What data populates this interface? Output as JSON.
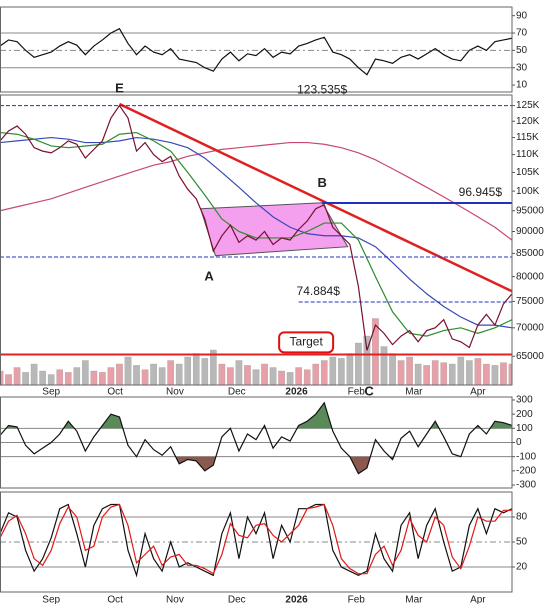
{
  "chart_data": [
    {
      "type": "line",
      "ylim": [
        2,
        100
      ],
      "yticks": [
        90,
        70,
        50,
        30,
        10
      ],
      "reference_lines": [
        {
          "value": 70
        },
        {
          "value": 50,
          "dashed": true
        },
        {
          "value": 30
        }
      ],
      "xlim": [
        0,
        240
      ],
      "series": [
        {
          "color": "#111111",
          "x": [
            0,
            4,
            8,
            12,
            16,
            20,
            24,
            28,
            32,
            36,
            40,
            44,
            48,
            52,
            56,
            60,
            64,
            68,
            72,
            76,
            80,
            84,
            88,
            92,
            96,
            100,
            104,
            108,
            112,
            116,
            120,
            124,
            128,
            132,
            136,
            140,
            144,
            148,
            152,
            156,
            160,
            164,
            168,
            172,
            176,
            180,
            184,
            188,
            192,
            196,
            200,
            204,
            208,
            212,
            216,
            220,
            224,
            228,
            232,
            236,
            240
          ],
          "values": [
            55,
            62,
            60,
            50,
            42,
            45,
            48,
            55,
            60,
            56,
            45,
            55,
            62,
            70,
            75,
            58,
            45,
            55,
            48,
            45,
            52,
            40,
            38,
            36,
            30,
            26,
            40,
            48,
            38,
            46,
            44,
            52,
            42,
            48,
            46,
            55,
            58,
            62,
            65,
            48,
            45,
            40,
            30,
            22,
            40,
            38,
            35,
            42,
            45,
            40,
            46,
            52,
            45,
            40,
            38,
            50,
            55,
            50,
            60,
            62,
            64
          ]
        }
      ]
    },
    {
      "type": "line",
      "log_scale": true,
      "ylim": [
        60300,
        128500
      ],
      "yticks": [
        {
          "value": 125000,
          "label": "125K"
        },
        {
          "value": 120000,
          "label": "120K"
        },
        {
          "value": 115000,
          "label": "115K"
        },
        {
          "value": 110000,
          "label": "110K"
        },
        {
          "value": 105000,
          "label": "105K"
        },
        {
          "value": 100000,
          "label": "100K"
        },
        95000,
        90000,
        85000,
        80000,
        75000,
        70000,
        65000
      ],
      "xlim": [
        0,
        240
      ],
      "xticks": [
        {
          "value": 24,
          "label": "Sep"
        },
        {
          "value": 54,
          "label": "Oct"
        },
        {
          "value": 82,
          "label": "Nov"
        },
        {
          "value": 111,
          "label": "Dec"
        },
        {
          "value": 139,
          "label": "2026"
        },
        {
          "value": 167,
          "label": "Feb"
        },
        {
          "value": 194,
          "label": "Mar"
        },
        {
          "value": 224,
          "label": "Apr"
        }
      ],
      "volume": {
        "vlim": [
          0,
          100
        ],
        "up_color": "#e8a0a8",
        "down_color": "#b8b8b8",
        "values": [
          20,
          15,
          25,
          18,
          30,
          20,
          15,
          22,
          18,
          25,
          35,
          20,
          18,
          25,
          30,
          40,
          28,
          22,
          30,
          25,
          35,
          30,
          40,
          45,
          38,
          50,
          30,
          25,
          35,
          28,
          22,
          30,
          25,
          20,
          18,
          25,
          22,
          30,
          35,
          40,
          38,
          45,
          60,
          70,
          95,
          55,
          45,
          35,
          40,
          30,
          28,
          35,
          32,
          30,
          40,
          35,
          38,
          30,
          28,
          32,
          30
        ]
      },
      "channel": {
        "color": "#f080e8",
        "x": [
          94,
          151,
          163,
          101
        ],
        "values": [
          95500,
          97000,
          86500,
          84500
        ]
      },
      "series": [
        {
          "color": "#c84870",
          "x": [
            0,
            8,
            16,
            24,
            32,
            40,
            48,
            56,
            64,
            72,
            80,
            88,
            96,
            104,
            112,
            120,
            128,
            136,
            144,
            152,
            160,
            168,
            176,
            184,
            192,
            200,
            208,
            216,
            224,
            232,
            240
          ],
          "values": [
            95000,
            96000,
            97000,
            98000,
            99500,
            101000,
            102500,
            104000,
            105500,
            107000,
            108000,
            109500,
            110500,
            111500,
            112000,
            112500,
            113000,
            113500,
            113500,
            113000,
            112000,
            110500,
            108500,
            106000,
            103500,
            101000,
            98500,
            96000,
            93500,
            91000,
            88000
          ]
        },
        {
          "color": "#3848b8",
          "x": [
            0,
            8,
            16,
            24,
            32,
            40,
            48,
            56,
            64,
            72,
            80,
            88,
            96,
            104,
            112,
            120,
            128,
            136,
            144,
            152,
            160,
            168,
            176,
            184,
            192,
            200,
            208,
            216,
            224,
            232,
            240
          ],
          "values": [
            113500,
            114000,
            114500,
            115000,
            114500,
            113500,
            113500,
            114000,
            115000,
            114500,
            113500,
            112000,
            109000,
            105000,
            101000,
            97000,
            93500,
            91000,
            89500,
            89000,
            89000,
            88500,
            86500,
            83000,
            79500,
            76500,
            74000,
            72000,
            70500,
            70500,
            70000
          ]
        },
        {
          "color": "#2e8b2e",
          "x": [
            0,
            8,
            16,
            24,
            32,
            40,
            48,
            56,
            64,
            72,
            80,
            88,
            96,
            104,
            112,
            120,
            128,
            136,
            144,
            152,
            160,
            168,
            176,
            184,
            192,
            200,
            208,
            216,
            224,
            232,
            240
          ],
          "values": [
            116500,
            116000,
            114500,
            112500,
            112000,
            112500,
            113000,
            116000,
            116500,
            114000,
            111000,
            105000,
            99000,
            93000,
            90000,
            88500,
            88500,
            88500,
            90000,
            92000,
            92000,
            88000,
            80000,
            73000,
            69000,
            68500,
            69500,
            70000,
            69000,
            70000,
            71500
          ]
        },
        {
          "color": "#7a1030",
          "x": [
            0,
            4,
            8,
            12,
            16,
            20,
            24,
            28,
            32,
            36,
            40,
            44,
            48,
            52,
            56,
            60,
            64,
            68,
            72,
            76,
            80,
            84,
            88,
            92,
            96,
            100,
            104,
            108,
            112,
            116,
            120,
            124,
            128,
            132,
            136,
            140,
            144,
            148,
            152,
            156,
            160,
            164,
            168,
            172,
            176,
            180,
            184,
            188,
            192,
            196,
            200,
            204,
            208,
            212,
            216,
            220,
            224,
            228,
            232,
            236,
            240
          ],
          "values": [
            114000,
            117000,
            118500,
            116000,
            112000,
            111000,
            110500,
            112000,
            114000,
            113000,
            109000,
            111500,
            114000,
            121000,
            125000,
            121000,
            111000,
            113500,
            110000,
            108000,
            109500,
            104000,
            100500,
            98000,
            93000,
            85500,
            89000,
            91500,
            87500,
            89000,
            88000,
            90000,
            87000,
            88500,
            88000,
            90500,
            92500,
            95500,
            96500,
            91000,
            89000,
            87000,
            78000,
            66000,
            70500,
            69000,
            67000,
            68500,
            69500,
            67500,
            69500,
            70000,
            71500,
            68000,
            67500,
            66500,
            70500,
            72500,
            70500,
            74500,
            76500
          ]
        }
      ],
      "trendline": {
        "color": "#e02020",
        "x": [
          56,
          240
        ],
        "values": [
          125500,
          77000
        ]
      },
      "levels": [
        {
          "value": 125000,
          "color": "#2030c0",
          "dashed": true
        },
        {
          "value": 84200,
          "color": "#2030c0",
          "dashed": true
        },
        {
          "value": 74884,
          "label": "74.884$",
          "from": 140,
          "label_at": 139,
          "color": "#2030c0",
          "dashed": true
        },
        {
          "value": 96945,
          "label": "96.945$",
          "from": 151,
          "label_at": 215,
          "color": "#2030c0",
          "solid": true
        },
        {
          "value": 65300,
          "color": "#e02020",
          "solid": true
        }
      ],
      "annotations": [
        {
          "text": "E",
          "x": 56,
          "y": 130500
        },
        {
          "text": "B",
          "x": 151,
          "y": 102000
        },
        {
          "text": "A",
          "x": 98,
          "y": 79900
        },
        {
          "text": "C",
          "x": 173,
          "y": 59200
        },
        {
          "text": "123.535$",
          "x": 151,
          "y": 130000
        },
        {
          "text": "Target",
          "x": 143.5,
          "y": 67400,
          "boxed": true
        }
      ]
    },
    {
      "type": "line",
      "ylim": [
        -321,
        321
      ],
      "yticks": [
        300,
        200,
        100,
        0,
        -100,
        -200,
        -300
      ],
      "reference_lines": [
        {
          "value": 100
        },
        {
          "value": 0
        },
        {
          "value": -100
        }
      ],
      "fill": {
        "above": 100,
        "above_color": "#5a8a5a",
        "below": -100,
        "below_color": "#8a5a50"
      },
      "xlim": [
        0,
        240
      ],
      "series": [
        {
          "color": "#111111",
          "x": [
            0,
            4,
            8,
            12,
            16,
            20,
            24,
            28,
            32,
            36,
            40,
            44,
            48,
            52,
            56,
            60,
            64,
            68,
            72,
            76,
            80,
            84,
            88,
            92,
            96,
            100,
            104,
            108,
            112,
            116,
            120,
            124,
            128,
            132,
            136,
            140,
            144,
            148,
            152,
            156,
            160,
            164,
            168,
            172,
            176,
            180,
            184,
            188,
            192,
            196,
            200,
            204,
            208,
            212,
            216,
            220,
            224,
            228,
            232,
            236,
            240
          ],
          "values": [
            50,
            120,
            110,
            -20,
            -80,
            -40,
            0,
            60,
            150,
            80,
            -60,
            40,
            120,
            200,
            180,
            -20,
            -100,
            20,
            -50,
            -90,
            -30,
            -150,
            -120,
            -130,
            -200,
            -160,
            40,
            100,
            -60,
            60,
            20,
            120,
            -40,
            40,
            10,
            120,
            150,
            200,
            280,
            80,
            -40,
            -100,
            -220,
            -180,
            20,
            -60,
            -120,
            30,
            80,
            -30,
            60,
            150,
            40,
            -80,
            -100,
            60,
            120,
            60,
            150,
            140,
            120
          ]
        }
      ]
    },
    {
      "type": "line",
      "ylim": [
        -10,
        110
      ],
      "yticks": [
        80,
        50,
        20
      ],
      "reference_lines": [
        {
          "value": 80
        },
        {
          "value": 50,
          "dashed": true
        },
        {
          "value": 20
        }
      ],
      "xlim": [
        0,
        240
      ],
      "series": [
        {
          "color": "#111111",
          "x": [
            0,
            4,
            8,
            12,
            16,
            20,
            24,
            28,
            32,
            36,
            40,
            44,
            48,
            52,
            56,
            60,
            64,
            68,
            72,
            76,
            80,
            84,
            88,
            92,
            96,
            100,
            104,
            108,
            112,
            116,
            120,
            124,
            128,
            132,
            136,
            140,
            144,
            148,
            152,
            156,
            160,
            164,
            168,
            172,
            176,
            180,
            184,
            188,
            192,
            196,
            200,
            204,
            208,
            212,
            216,
            220,
            224,
            228,
            232,
            236,
            240
          ],
          "values": [
            60,
            85,
            80,
            40,
            15,
            30,
            55,
            90,
            95,
            60,
            20,
            70,
            90,
            95,
            95,
            40,
            10,
            60,
            30,
            15,
            50,
            20,
            25,
            20,
            15,
            10,
            60,
            85,
            30,
            80,
            60,
            85,
            30,
            70,
            50,
            90,
            90,
            95,
            95,
            40,
            20,
            15,
            10,
            15,
            60,
            30,
            15,
            70,
            85,
            30,
            70,
            90,
            50,
            15,
            20,
            70,
            90,
            60,
            90,
            85,
            90
          ]
        },
        {
          "color": "#e01818",
          "x": [
            0,
            4,
            8,
            12,
            16,
            20,
            24,
            28,
            32,
            36,
            40,
            44,
            48,
            52,
            56,
            60,
            64,
            68,
            72,
            76,
            80,
            84,
            88,
            92,
            96,
            100,
            104,
            108,
            112,
            116,
            120,
            124,
            128,
            132,
            136,
            140,
            144,
            148,
            152,
            156,
            160,
            164,
            168,
            172,
            176,
            180,
            184,
            188,
            192,
            196,
            200,
            204,
            208,
            212,
            216,
            220,
            224,
            228,
            232,
            236,
            240
          ],
          "values": [
            55,
            75,
            82,
            60,
            30,
            22,
            40,
            72,
            92,
            80,
            40,
            45,
            80,
            92,
            95,
            70,
            25,
            35,
            45,
            22,
            32,
            35,
            22,
            22,
            18,
            12,
            35,
            72,
            58,
            55,
            70,
            72,
            58,
            50,
            60,
            70,
            90,
            92,
            95,
            70,
            30,
            18,
            12,
            12,
            35,
            45,
            22,
            40,
            78,
            58,
            50,
            80,
            70,
            32,
            18,
            45,
            80,
            75,
            75,
            88,
            88
          ]
        }
      ]
    }
  ]
}
